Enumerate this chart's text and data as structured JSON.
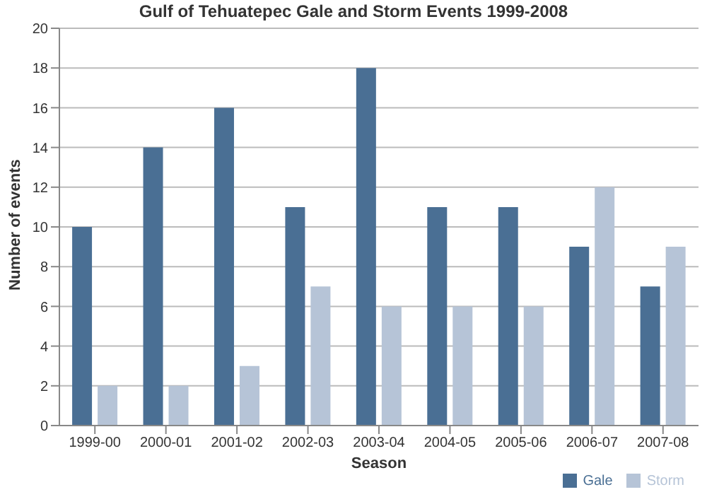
{
  "chart_data": {
    "type": "bar",
    "title": "Gulf of Tehuatepec Gale and Storm Events 1999-2008",
    "xlabel": "Season",
    "ylabel": "Number of events",
    "categories": [
      "1999-00",
      "2000-01",
      "2001-02",
      "2002-03",
      "2003-04",
      "2004-05",
      "2005-06",
      "2006-07",
      "2007-08"
    ],
    "series": [
      {
        "name": "Gale",
        "color": "#4a6f94",
        "values": [
          10,
          14,
          16,
          11,
          18,
          11,
          11,
          9,
          7
        ]
      },
      {
        "name": "Storm",
        "color": "#b6c4d7",
        "values": [
          2,
          2,
          3,
          7,
          6,
          6,
          6,
          12,
          9
        ]
      }
    ],
    "ylim": [
      0,
      20
    ],
    "yticks": [
      0,
      2,
      4,
      6,
      8,
      10,
      12,
      14,
      16,
      18,
      20
    ],
    "grid": "y",
    "legend": "bottom right"
  }
}
